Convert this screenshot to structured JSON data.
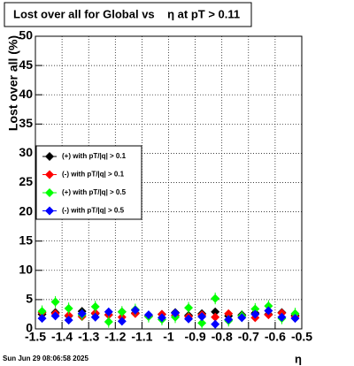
{
  "chart_data": {
    "type": "scatter",
    "title": "Lost over all for Global vs    η at pT > 0.11",
    "x_label": "η",
    "y_label": "Lost over all (%)",
    "timestamp": "Sun Jun 29 08:06:58 2025",
    "x": [
      -1.475,
      -1.425,
      -1.375,
      -1.325,
      -1.275,
      -1.225,
      -1.175,
      -1.125,
      -1.075,
      -1.025,
      -0.975,
      -0.925,
      -0.875,
      -0.825,
      -0.775,
      -0.725,
      -0.675,
      -0.625,
      -0.575,
      -0.525
    ],
    "series": [
      {
        "name": "(+) with pT/|q| > 0.1",
        "color": "#000000",
        "values": [
          2.5,
          2.8,
          2.2,
          3.0,
          2.6,
          2.4,
          2.9,
          2.7,
          2.2,
          2.5,
          2.8,
          2.3,
          2.6,
          2.9,
          2.2,
          2.4,
          2.7,
          2.5,
          2.8,
          2.3
        ],
        "errors": [
          0.6,
          0.6,
          0.6,
          0.6,
          0.6,
          0.6,
          0.6,
          0.6,
          0.6,
          0.6,
          0.6,
          0.6,
          0.6,
          0.6,
          0.6,
          0.6,
          0.6,
          0.6,
          0.6,
          0.6
        ]
      },
      {
        "name": "(-) with pT/|q| > 0.1",
        "color": "#ff0000",
        "values": [
          2.8,
          2.6,
          2.3,
          2.1,
          2.7,
          2.4,
          2.0,
          2.6,
          2.2,
          2.5,
          2.3,
          2.1,
          2.4,
          2.0,
          2.6,
          2.2,
          1.9,
          2.4,
          2.7,
          2.1
        ],
        "errors": [
          0.6,
          0.6,
          0.6,
          0.6,
          0.6,
          0.6,
          0.6,
          0.6,
          0.6,
          0.6,
          0.6,
          0.6,
          0.6,
          0.6,
          0.6,
          0.6,
          0.6,
          0.6,
          0.6,
          0.6
        ]
      },
      {
        "name": "(+) with pT/|q| > 0.5",
        "color": "#00ff00",
        "values": [
          3.0,
          4.6,
          3.5,
          2.4,
          3.8,
          1.2,
          2.9,
          3.3,
          2.1,
          1.6,
          2.0,
          3.6,
          1.0,
          5.2,
          1.4,
          2.2,
          3.4,
          3.9,
          1.8,
          2.6
        ],
        "errors": [
          1.0,
          1.0,
          1.0,
          1.0,
          1.0,
          1.0,
          1.0,
          1.0,
          1.0,
          1.0,
          1.0,
          1.0,
          1.0,
          1.0,
          1.0,
          1.0,
          1.0,
          1.0,
          1.0,
          1.0
        ]
      },
      {
        "name": "(-) with pT/|q| > 0.5",
        "color": "#0000ff",
        "values": [
          1.8,
          2.2,
          1.5,
          2.6,
          2.0,
          2.9,
          1.3,
          3.2,
          2.4,
          1.9,
          2.7,
          1.7,
          2.1,
          0.8,
          1.6,
          1.9,
          2.5,
          3.1,
          2.0,
          1.8
        ],
        "errors": [
          0.7,
          0.7,
          0.7,
          0.7,
          0.7,
          0.7,
          0.7,
          0.7,
          0.7,
          0.7,
          0.7,
          0.7,
          0.7,
          0.7,
          0.7,
          0.7,
          0.7,
          0.7,
          0.7,
          0.7
        ]
      }
    ],
    "xlim": [
      -1.5,
      -0.5
    ],
    "xticks": [
      -1.5,
      -1.4,
      -1.3,
      -1.2,
      -1.1,
      -1,
      -0.9,
      -0.8,
      -0.7,
      -0.6,
      -0.5
    ],
    "ylim": [
      0,
      50
    ],
    "yticks": [
      0,
      5,
      10,
      15,
      20,
      25,
      30,
      35,
      40,
      45,
      50
    ],
    "grid": true,
    "legend": "left"
  }
}
